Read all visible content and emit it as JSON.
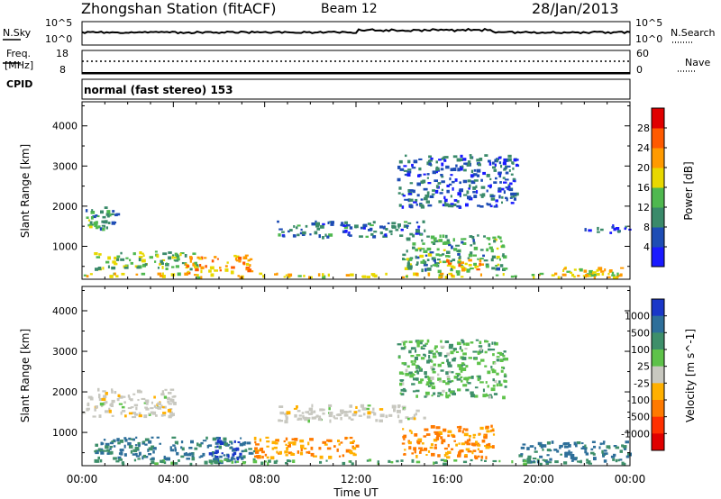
{
  "header": {
    "station_title": "Zhongshan Station (fitACF)",
    "beam_title": "Beam 12",
    "date": "28/Jan/2013",
    "mode": "normal (fast stereo) 153"
  },
  "aux_panels": {
    "sky": {
      "left_label": "N.Sky",
      "right_label": "N.Search",
      "left_ticks": [
        "10^5",
        "10^0"
      ],
      "right_ticks": [
        "10^5",
        "10^0"
      ]
    },
    "freq": {
      "left_label_1": "Freq.",
      "left_label_2": "[MHz]",
      "right_label": "Nave",
      "left_ticks": [
        "18",
        "8"
      ],
      "right_ticks": [
        "60",
        "0"
      ]
    },
    "cpid_label": "CPID"
  },
  "colors": {
    "power_scale": [
      "#1a1aff",
      "#1e4db5",
      "#3a8a6a",
      "#4fb84f",
      "#e8d800",
      "#ff9a00",
      "#ff5a00",
      "#e00000"
    ],
    "velocity_scale": [
      "#1a37c8",
      "#2e6f9a",
      "#3e8f6a",
      "#5ec24a",
      "#c8c8c0",
      "#ffb000",
      "#ff7a00",
      "#ff3000",
      "#e00000"
    ]
  },
  "chart_data": [
    {
      "type": "heatmap",
      "title": "Power",
      "xlabel": "Time UT",
      "ylabel": "Slant Range [km]",
      "x_ticks": [
        "00:00",
        "04:00",
        "08:00",
        "12:00",
        "16:00",
        "20:00",
        "00:00"
      ],
      "xlim": [
        0,
        24
      ],
      "ylim": [
        180,
        4600
      ],
      "y_ticks": [
        1000,
        2000,
        3000,
        4000
      ],
      "colorbar": {
        "label": "Power [dB]",
        "ticks": [
          4,
          8,
          12,
          16,
          20,
          24,
          28
        ],
        "range": [
          0,
          32
        ]
      },
      "regions": [
        {
          "t": [
            0.0,
            1.6
          ],
          "r": [
            1450,
            2000
          ],
          "value": 10
        },
        {
          "t": [
            0.0,
            1.0
          ],
          "r": [
            1500,
            1700
          ],
          "value": 14
        },
        {
          "t": [
            0.5,
            5.0
          ],
          "r": [
            450,
            900
          ],
          "value": 14
        },
        {
          "t": [
            4.5,
            7.5
          ],
          "r": [
            350,
            800
          ],
          "value": 22
        },
        {
          "t": [
            0.0,
            24.0
          ],
          "r": [
            250,
            350
          ],
          "value": 18
        },
        {
          "t": [
            8.5,
            15.0
          ],
          "r": [
            1250,
            1650
          ],
          "value": 8
        },
        {
          "t": [
            13.8,
            19.0
          ],
          "r": [
            2000,
            3300
          ],
          "value": 7
        },
        {
          "t": [
            14.0,
            18.5
          ],
          "r": [
            400,
            1300
          ],
          "value": 12
        },
        {
          "t": [
            15.5,
            17.5
          ],
          "r": [
            450,
            700
          ],
          "value": 22
        },
        {
          "t": [
            21.0,
            24.0
          ],
          "r": [
            250,
            500
          ],
          "value": 18
        },
        {
          "t": [
            22.0,
            24.0
          ],
          "r": [
            1350,
            1550
          ],
          "value": 6
        }
      ]
    },
    {
      "type": "heatmap",
      "title": "Velocity",
      "xlabel": "Time UT",
      "ylabel": "Slant Range [km]",
      "x_ticks": [
        "00:00",
        "04:00",
        "08:00",
        "12:00",
        "16:00",
        "20:00",
        "00:00"
      ],
      "xlim": [
        0,
        24
      ],
      "ylim": [
        180,
        4600
      ],
      "y_ticks": [
        1000,
        2000,
        3000,
        4000
      ],
      "colorbar": {
        "label": "Velocity [m s^-1]",
        "ticks": [
          "1000",
          "500",
          "100",
          "25",
          "-25",
          "-100",
          "-500",
          "-1000"
        ]
      },
      "regions": [
        {
          "t": [
            0.0,
            4.0
          ],
          "r": [
            1400,
            2100
          ],
          "value": 0
        },
        {
          "t": [
            0.5,
            7.5
          ],
          "r": [
            350,
            900
          ],
          "value": 300
        },
        {
          "t": [
            5.5,
            7.0
          ],
          "r": [
            300,
            900
          ],
          "value": 800
        },
        {
          "t": [
            7.5,
            12.0
          ],
          "r": [
            400,
            900
          ],
          "value": -100
        },
        {
          "t": [
            0.0,
            24.0
          ],
          "r": [
            250,
            350
          ],
          "value": 150
        },
        {
          "t": [
            8.5,
            15.0
          ],
          "r": [
            1300,
            1700
          ],
          "value": 0
        },
        {
          "t": [
            13.8,
            18.5
          ],
          "r": [
            1900,
            3300
          ],
          "value": 80
        },
        {
          "t": [
            14.0,
            18.0
          ],
          "r": [
            400,
            1200
          ],
          "value": -120
        },
        {
          "t": [
            19.0,
            24.0
          ],
          "r": [
            300,
            800
          ],
          "value": 300
        }
      ]
    }
  ]
}
